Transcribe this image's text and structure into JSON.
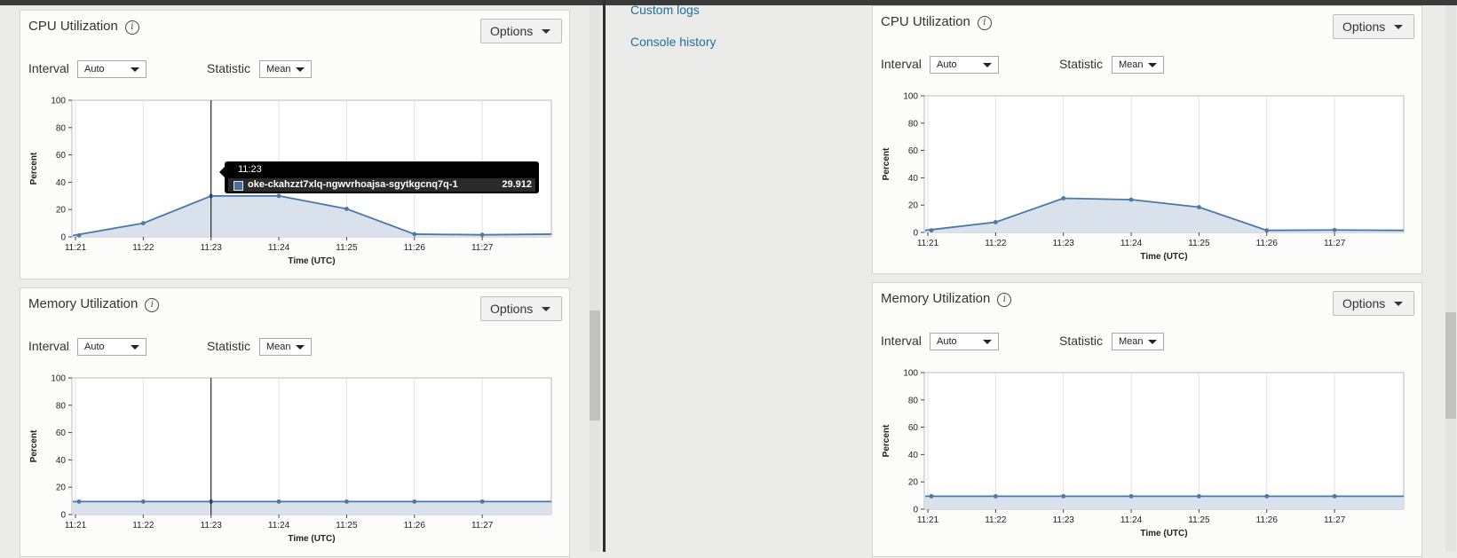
{
  "colors": {
    "series_line": "#4a78a8",
    "series_fill": "#d9e1ec",
    "link": "#1f6e9c",
    "tooltip_bg": "#000000"
  },
  "icons": {
    "info": "info-circle-icon",
    "caret": "caret-down-icon"
  },
  "links": {
    "custom_logs": "Custom logs",
    "console_history": "Console history"
  },
  "panels": [
    {
      "title": "CPU Utilization",
      "info_glyph": "i",
      "options_label": "Options",
      "interval_label": "Interval",
      "interval_value": "Auto",
      "statistic_label": "Statistic",
      "statistic_value": "Mean",
      "tooltip": {
        "time": "11:23",
        "series": "oke-ckahzzt7xlq-ngwvrhoajsa-sgytkgcnq7q-1",
        "value": "29.912"
      },
      "chart_data": {
        "type": "area",
        "title": "CPU Utilization",
        "xlabel": "Time (UTC)",
        "ylabel": "Percent",
        "ylim": [
          0,
          100
        ],
        "y_ticks": [
          "0",
          "20",
          "40",
          "60",
          "80",
          "100"
        ],
        "x_ticks": [
          "11:21",
          "11:22",
          "11:23",
          "11:24",
          "11:25",
          "11:26",
          "11:27"
        ],
        "grid": true,
        "x": [
          "11:21",
          "11:22",
          "11:23",
          "11:24",
          "11:25",
          "11:26",
          "11:27",
          "11:28"
        ],
        "series": [
          {
            "values": [
              1,
              10,
              29.912,
              30,
              20.5,
              2,
              1.5,
              2
            ]
          }
        ],
        "cursor_at": "11:23"
      }
    },
    {
      "title": "Memory Utilization",
      "info_glyph": "i",
      "options_label": "Options",
      "interval_label": "Interval",
      "interval_value": "Auto",
      "statistic_label": "Statistic",
      "statistic_value": "Mean",
      "chart_data": {
        "type": "area",
        "title": "Memory Utilization",
        "xlabel": "Time (UTC)",
        "ylabel": "Percent",
        "ylim": [
          0,
          100
        ],
        "y_ticks": [
          "0",
          "20",
          "40",
          "60",
          "80",
          "100"
        ],
        "x_ticks": [
          "11:21",
          "11:22",
          "11:23",
          "11:24",
          "11:25",
          "11:26",
          "11:27"
        ],
        "grid": true,
        "x": [
          "11:21",
          "11:22",
          "11:23",
          "11:24",
          "11:25",
          "11:26",
          "11:27",
          "11:28"
        ],
        "series": [
          {
            "values": [
              9.5,
              9.5,
              9.5,
              9.5,
              9.5,
              9.5,
              9.5,
              9.5
            ]
          }
        ],
        "cursor_at": "11:23"
      }
    },
    {
      "title": "CPU Utilization",
      "info_glyph": "i",
      "options_label": "Options",
      "interval_label": "Interval",
      "interval_value": "Auto",
      "statistic_label": "Statistic",
      "statistic_value": "Mean",
      "chart_data": {
        "type": "area",
        "title": "CPU Utilization",
        "xlabel": "Time (UTC)",
        "ylabel": "Percent",
        "ylim": [
          0,
          100
        ],
        "y_ticks": [
          "0",
          "20",
          "40",
          "60",
          "80",
          "100"
        ],
        "x_ticks": [
          "11:21",
          "11:22",
          "11:23",
          "11:24",
          "11:25",
          "11:26",
          "11:27"
        ],
        "grid": true,
        "x": [
          "11:21",
          "11:22",
          "11:23",
          "11:24",
          "11:25",
          "11:26",
          "11:27",
          "11:28"
        ],
        "series": [
          {
            "values": [
              1.5,
              7.5,
              25,
              24,
              18.5,
              1.5,
              1.8,
              1.5
            ]
          }
        ]
      }
    },
    {
      "title": "Memory Utilization",
      "info_glyph": "i",
      "options_label": "Options",
      "interval_label": "Interval",
      "interval_value": "Auto",
      "statistic_label": "Statistic",
      "statistic_value": "Mean",
      "chart_data": {
        "type": "area",
        "title": "Memory Utilization",
        "xlabel": "Time (UTC)",
        "ylabel": "Percent",
        "ylim": [
          0,
          100
        ],
        "y_ticks": [
          "0",
          "20",
          "40",
          "60",
          "80",
          "100"
        ],
        "x_ticks": [
          "11:21",
          "11:22",
          "11:23",
          "11:24",
          "11:25",
          "11:26",
          "11:27"
        ],
        "grid": true,
        "x": [
          "11:21",
          "11:22",
          "11:23",
          "11:24",
          "11:25",
          "11:26",
          "11:27",
          "11:28"
        ],
        "series": [
          {
            "values": [
              9.5,
              9.5,
              9.5,
              9.5,
              9.5,
              9.5,
              9.5,
              9.5
            ]
          }
        ]
      }
    }
  ]
}
